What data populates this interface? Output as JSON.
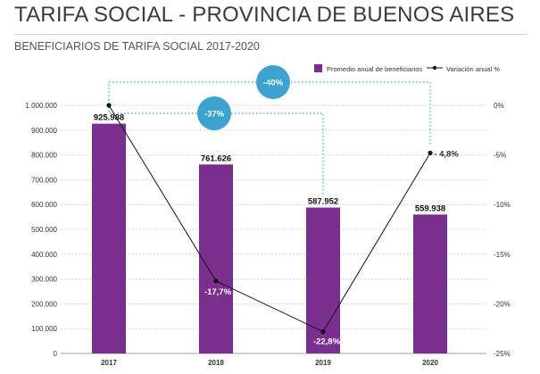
{
  "title": "TARIFA SOCIAL - PROVINCIA DE BUENOS AIRES",
  "subtitle": "BENEFICIARIOS DE TARIFA SOCIAL 2017-2020",
  "chart_data": {
    "type": "bar",
    "categories": [
      "2017",
      "2018",
      "2019",
      "2020"
    ],
    "series": [
      {
        "name": "Promedio anual de beneficiarios",
        "type": "bar",
        "axis": "left",
        "color": "#7a2e8e",
        "values": [
          925988,
          761626,
          587952,
          559938
        ],
        "labels": [
          "925.988",
          "761.626",
          "587.952",
          "559.938"
        ]
      },
      {
        "name": "Variación anual %",
        "type": "line",
        "axis": "right",
        "color": "#111111",
        "values": [
          0,
          -17.7,
          -22.8,
          -4.8
        ],
        "labels": [
          "",
          "-17,7%",
          "-22,8%",
          "- 4,8%"
        ]
      }
    ],
    "left_axis": {
      "ylim": [
        0,
        1000000
      ],
      "ticks": [
        "0",
        "100.000",
        "200.000",
        "300.000",
        "400.000",
        "500.000",
        "600.000",
        "700.000",
        "800.000",
        "900.000",
        "1.000.000"
      ]
    },
    "right_axis": {
      "ylim": [
        -25,
        0
      ],
      "ticks": [
        "0%",
        "-5%",
        "-10%",
        "-15%",
        "-20%",
        "-25%"
      ]
    },
    "grid": true,
    "legend_position": "top-right",
    "annotations": [
      {
        "label": "-37%",
        "from": "2017",
        "to": "2019",
        "color": "#3aa3cf"
      },
      {
        "label": "-40%",
        "from": "2017",
        "to": "2020",
        "color": "#3aa3cf"
      }
    ]
  }
}
